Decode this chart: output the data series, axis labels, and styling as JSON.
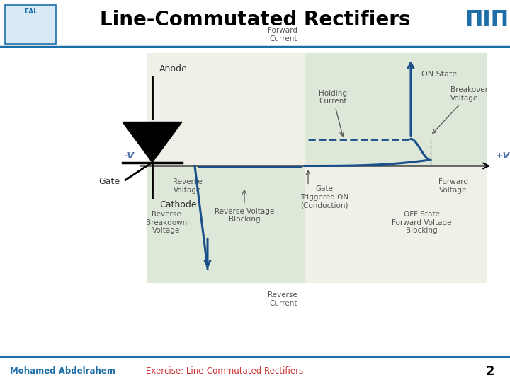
{
  "title": "Line-Commutated Rectifiers",
  "subtitle_left": "Mohamed Abdelrahem",
  "subtitle_center": "Exercise: Line-Commutated Rectifiers",
  "page_num": "2",
  "bg_color": "#ffffff",
  "header_line_color": "#1e6fa8",
  "footer_line_color": "#1e6fa8",
  "title_color": "#000000",
  "subtitle_color": "#1e6fa8",
  "subtitle_center_color": "#cc3333",
  "curve_color": "#1a4f8a",
  "shading_color_q1": "#dde8d8",
  "shading_color_q3": "#dde8d8",
  "shading_color_q4": "#eaeaea",
  "label_color": "#4a6fa8",
  "label_color_dark": "#555555",
  "axis_color": "#000000",
  "thyristor_color": "#000000",
  "annotations": {
    "forward_current": "Forward\nCurrent",
    "reverse_current": "Reverse\nCurrent",
    "forward_voltage": "Forward\nVoltage",
    "reverse_voltage": "Reverse\nVoltage",
    "plus_v": "+V",
    "minus_v": "-V",
    "on_state": "ON State",
    "holding_current": "Holding\nCurrent",
    "breakover_voltage": "Breakover\nVoltage",
    "gate_triggered": "Gate\nTriggered ON\n(Conduction)",
    "off_state": "OFF State\nForward Voltage\nBlocking",
    "reverse_blocking": "Reverse Voltage\nBlocking",
    "reverse_breakdown": "Reverse\nBreakdown\nVoltage",
    "anode": "Anode",
    "gate": "Gate",
    "cathode": "Cathode"
  }
}
